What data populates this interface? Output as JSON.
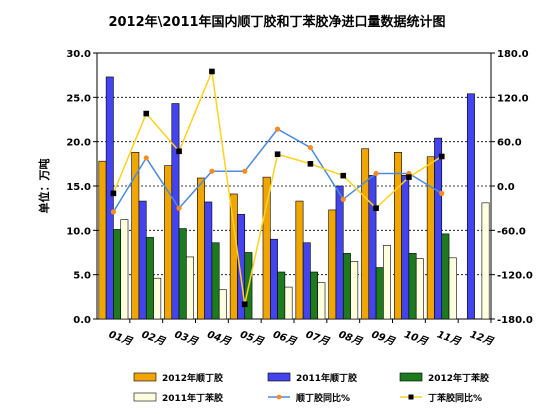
{
  "chart_data": {
    "type": "bar",
    "title": "2012年\\2011年国内顺丁胶和丁苯胶净进口量数据统计图",
    "ylabel": "单位：万吨",
    "categories": [
      "01月",
      "02月",
      "03月",
      "04月",
      "05月",
      "06月",
      "07月",
      "08月",
      "09月",
      "10月",
      "11月",
      "12月"
    ],
    "ylim": [
      0,
      30
    ],
    "yticks": [
      "0.0",
      "5.0",
      "10.0",
      "15.0",
      "20.0",
      "25.0",
      "30.0"
    ],
    "y2lim": [
      -180,
      180
    ],
    "y2ticks": [
      "-180.0",
      "-120.0",
      "-60.0",
      "0.0",
      "60.0",
      "120.0",
      "180.0"
    ],
    "grid": true,
    "legend_position": "bottom",
    "series": [
      {
        "name": "2012年顺丁胶",
        "kind": "bar",
        "axis": "left",
        "color": "#f0a500",
        "values": [
          17.8,
          18.8,
          17.3,
          15.9,
          14.1,
          16.0,
          13.3,
          12.3,
          19.2,
          18.8,
          18.3,
          null
        ]
      },
      {
        "name": "2011年顺丁胶",
        "kind": "bar",
        "axis": "left",
        "color": "#4444ee",
        "values": [
          27.3,
          13.3,
          24.3,
          13.2,
          11.8,
          9.0,
          8.6,
          15.0,
          16.2,
          16.2,
          20.4,
          25.4
        ]
      },
      {
        "name": "2012年丁苯胶",
        "kind": "bar",
        "axis": "left",
        "color": "#1e7a1e",
        "values": [
          10.1,
          9.2,
          10.2,
          8.6,
          7.5,
          5.3,
          5.3,
          7.4,
          5.8,
          7.4,
          9.6,
          null
        ]
      },
      {
        "name": "2011年丁苯胶",
        "kind": "bar",
        "axis": "left",
        "color": "#ffffe0",
        "values": [
          11.2,
          4.6,
          7.0,
          3.3,
          null,
          3.6,
          4.1,
          6.5,
          8.3,
          6.8,
          6.9,
          13.1
        ]
      },
      {
        "name": "顺丁胶同比%",
        "kind": "line",
        "axis": "right",
        "color": "#4a8be0",
        "marker_color": "#ff8a1e",
        "values": [
          -35,
          38,
          -30,
          20,
          20,
          77,
          52,
          -18,
          17,
          17,
          -10,
          null
        ]
      },
      {
        "name": "丁苯胶同比%",
        "kind": "line",
        "axis": "right",
        "color": "#ffd21e",
        "marker_color": "#000000",
        "values": [
          -10,
          98,
          47,
          155,
          -160,
          43,
          30,
          14,
          -30,
          12,
          40,
          null
        ]
      }
    ]
  }
}
